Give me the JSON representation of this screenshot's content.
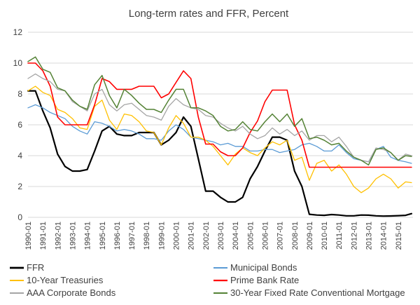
{
  "chart_data": {
    "type": "line",
    "title": "Long-term rates and FFR, Percent",
    "xlabel": "",
    "ylabel": "",
    "ylim": [
      0,
      12
    ],
    "yticks": [
      0,
      2,
      4,
      6,
      8,
      10,
      12
    ],
    "grid": true,
    "legend_position": "bottom",
    "x_tick_labels": [
      "1990-01",
      "1991-01",
      "1992-01",
      "1993-01",
      "1994-01",
      "1995-01",
      "1996-01",
      "1997-01",
      "1998-01",
      "1999-01",
      "2000-01",
      "2001-01",
      "2002-01",
      "2003-01",
      "2004-01",
      "2005-01",
      "2006-01",
      "2007-01",
      "2008-01",
      "2009-01",
      "2010-01",
      "2011-01",
      "2012-01",
      "2013-01",
      "2014-01",
      "2015-01"
    ],
    "x": [
      1990.0,
      1990.5,
      1991.0,
      1991.5,
      1992.0,
      1992.5,
      1993.0,
      1993.5,
      1994.0,
      1994.5,
      1995.0,
      1995.5,
      1996.0,
      1996.5,
      1997.0,
      1997.5,
      1998.0,
      1998.5,
      1999.0,
      1999.5,
      2000.0,
      2000.5,
      2001.0,
      2001.5,
      2002.0,
      2002.5,
      2003.0,
      2003.5,
      2004.0,
      2004.5,
      2005.0,
      2005.5,
      2006.0,
      2006.5,
      2007.0,
      2007.5,
      2008.0,
      2008.5,
      2009.0,
      2009.5,
      2010.0,
      2010.5,
      2011.0,
      2011.5,
      2012.0,
      2012.5,
      2013.0,
      2013.5,
      2014.0,
      2014.5,
      2015.0,
      2015.5,
      2015.9
    ],
    "series": [
      {
        "name": "FFR",
        "color": "#000000",
        "width": 2.2,
        "values": [
          8.2,
          8.2,
          6.9,
          5.8,
          4.1,
          3.3,
          3.0,
          3.0,
          3.1,
          4.3,
          5.6,
          5.9,
          5.4,
          5.3,
          5.3,
          5.5,
          5.5,
          5.5,
          4.7,
          5.0,
          5.5,
          6.5,
          5.9,
          3.8,
          1.7,
          1.7,
          1.3,
          1.0,
          1.0,
          1.3,
          2.5,
          3.3,
          4.3,
          5.2,
          5.2,
          5.0,
          3.0,
          2.0,
          0.2,
          0.15,
          0.13,
          0.18,
          0.15,
          0.1,
          0.1,
          0.15,
          0.14,
          0.1,
          0.08,
          0.09,
          0.11,
          0.13,
          0.24
        ]
      },
      {
        "name": "Municipal Bonds",
        "color": "#5b9bd5",
        "width": 1.3,
        "values": [
          7.1,
          7.3,
          7.1,
          6.8,
          6.6,
          6.4,
          5.9,
          5.6,
          5.4,
          6.2,
          6.1,
          5.9,
          5.6,
          5.7,
          5.6,
          5.4,
          5.1,
          5.1,
          5.0,
          5.6,
          6.0,
          5.7,
          5.2,
          5.1,
          5.0,
          4.9,
          4.7,
          4.8,
          4.6,
          4.6,
          4.3,
          4.3,
          4.4,
          4.4,
          4.2,
          4.3,
          4.4,
          4.7,
          4.8,
          4.6,
          4.3,
          4.3,
          4.7,
          4.2,
          3.8,
          3.7,
          3.6,
          4.4,
          4.6,
          3.9,
          3.7,
          3.6,
          3.5
        ]
      },
      {
        "name": "10-Year Treasuries",
        "color": "#ffc000",
        "width": 1.3,
        "values": [
          8.2,
          8.5,
          8.1,
          7.9,
          7.0,
          6.8,
          6.4,
          5.8,
          5.7,
          7.2,
          7.6,
          6.3,
          5.7,
          6.7,
          6.6,
          6.2,
          5.6,
          5.5,
          4.7,
          5.8,
          6.6,
          6.1,
          5.2,
          5.2,
          5.0,
          4.6,
          4.0,
          3.4,
          4.1,
          4.5,
          4.2,
          4.0,
          4.5,
          4.9,
          4.7,
          5.0,
          3.7,
          3.9,
          2.4,
          3.5,
          3.7,
          3.0,
          3.4,
          2.8,
          2.0,
          1.6,
          1.9,
          2.5,
          2.8,
          2.5,
          1.9,
          2.3,
          2.25
        ]
      },
      {
        "name": "Prime Bank Rate",
        "color": "#ff0000",
        "width": 1.6,
        "values": [
          10.0,
          10.0,
          9.5,
          8.5,
          6.5,
          6.0,
          6.0,
          6.0,
          6.0,
          7.3,
          9.0,
          8.8,
          8.3,
          8.3,
          8.3,
          8.5,
          8.5,
          8.5,
          7.75,
          8.0,
          8.75,
          9.5,
          9.0,
          6.5,
          4.75,
          4.75,
          4.25,
          4.0,
          4.0,
          4.5,
          5.5,
          6.25,
          7.5,
          8.25,
          8.25,
          8.25,
          6.0,
          5.0,
          3.25,
          3.25,
          3.25,
          3.25,
          3.25,
          3.25,
          3.25,
          3.25,
          3.25,
          3.25,
          3.25,
          3.25,
          3.25,
          3.25,
          3.25
        ]
      },
      {
        "name": "AAA Corporate Bonds",
        "color": "#a5a5a5",
        "width": 1.3,
        "values": [
          9.0,
          9.3,
          9.0,
          8.8,
          8.3,
          8.2,
          7.5,
          7.2,
          6.9,
          8.0,
          8.3,
          7.3,
          6.9,
          7.3,
          7.4,
          7.0,
          6.6,
          6.5,
          6.3,
          7.2,
          7.7,
          7.3,
          7.1,
          7.0,
          6.6,
          6.5,
          6.1,
          5.8,
          5.6,
          5.9,
          5.4,
          5.1,
          5.3,
          5.8,
          5.4,
          5.7,
          5.3,
          5.6,
          5.0,
          5.3,
          5.3,
          4.9,
          5.2,
          4.6,
          3.9,
          3.7,
          3.6,
          4.5,
          4.4,
          4.2,
          3.7,
          4.1,
          4.0
        ]
      },
      {
        "name": "30-Year Fixed Rate Conventional Mortgage",
        "color": "#548235",
        "width": 1.5,
        "values": [
          10.1,
          10.4,
          9.6,
          9.4,
          8.4,
          8.2,
          7.6,
          7.2,
          7.0,
          8.6,
          9.2,
          7.9,
          7.1,
          8.3,
          7.9,
          7.4,
          7.0,
          7.0,
          6.8,
          7.6,
          8.3,
          8.3,
          7.1,
          7.1,
          6.9,
          6.6,
          5.9,
          5.6,
          5.7,
          6.2,
          5.7,
          5.6,
          6.2,
          6.7,
          6.2,
          6.7,
          5.9,
          6.4,
          5.1,
          5.2,
          5.0,
          4.7,
          4.8,
          4.3,
          3.9,
          3.7,
          3.4,
          4.4,
          4.5,
          4.2,
          3.7,
          4.0,
          3.95
        ]
      }
    ]
  }
}
